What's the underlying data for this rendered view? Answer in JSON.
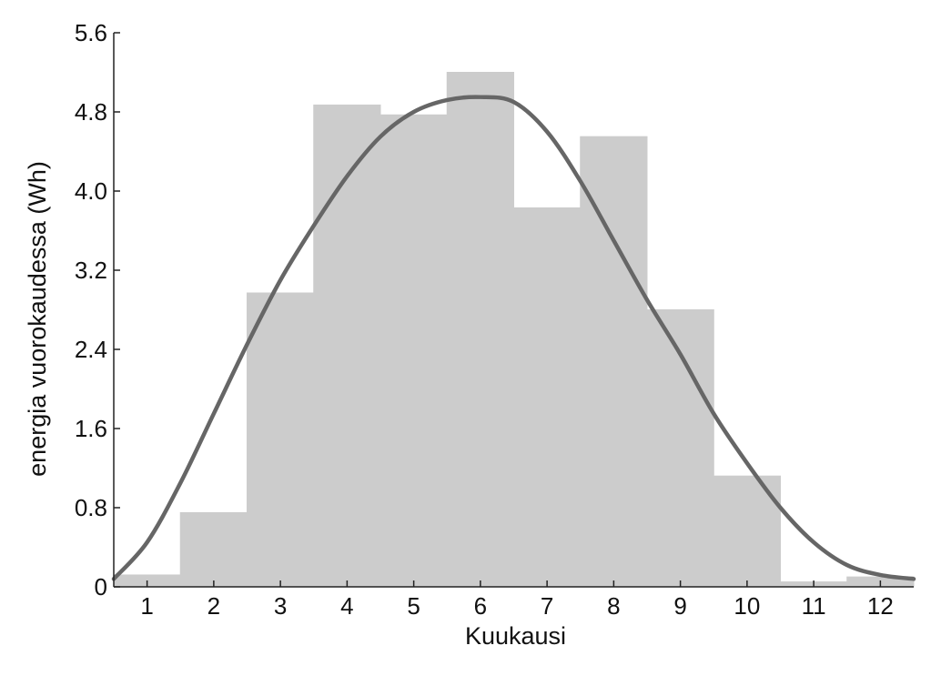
{
  "chart_data": {
    "type": "bar",
    "title": "",
    "xlabel": "Kuukausi",
    "ylabel": "energia vuorokaudessa (Wh)",
    "categories": [
      "1",
      "2",
      "3",
      "4",
      "5",
      "6",
      "7",
      "8",
      "9",
      "10",
      "11",
      "12"
    ],
    "xlim": [
      0.5,
      12.5
    ],
    "ylim": [
      0,
      5.6
    ],
    "yticks": [
      "0",
      "0.8",
      "1.6",
      "2.4",
      "3.2",
      "4.0",
      "4.8",
      "5.6"
    ],
    "ytick_values": [
      0,
      0.8,
      1.6,
      2.4,
      3.2,
      4.0,
      4.8,
      5.6
    ],
    "grid": false,
    "series": [
      {
        "type": "bar",
        "values": [
          0.12,
          0.75,
          2.97,
          4.87,
          4.77,
          5.2,
          3.83,
          4.55,
          2.8,
          1.12,
          0.05,
          0.1
        ],
        "color": "#cccccc"
      },
      {
        "type": "line",
        "x": [
          0.5,
          1.0,
          1.5,
          2.0,
          2.5,
          3.0,
          3.5,
          4.0,
          4.5,
          5.0,
          5.5,
          6.0,
          6.5,
          7.0,
          7.5,
          8.0,
          8.5,
          9.0,
          9.5,
          10.0,
          10.5,
          11.0,
          11.5,
          12.0,
          12.5
        ],
        "values": [
          0.08,
          0.45,
          1.05,
          1.75,
          2.45,
          3.1,
          3.65,
          4.15,
          4.55,
          4.8,
          4.92,
          4.95,
          4.9,
          4.6,
          4.1,
          3.5,
          2.9,
          2.35,
          1.75,
          1.25,
          0.8,
          0.45,
          0.22,
          0.12,
          0.08
        ],
        "color": "#666666"
      }
    ]
  }
}
